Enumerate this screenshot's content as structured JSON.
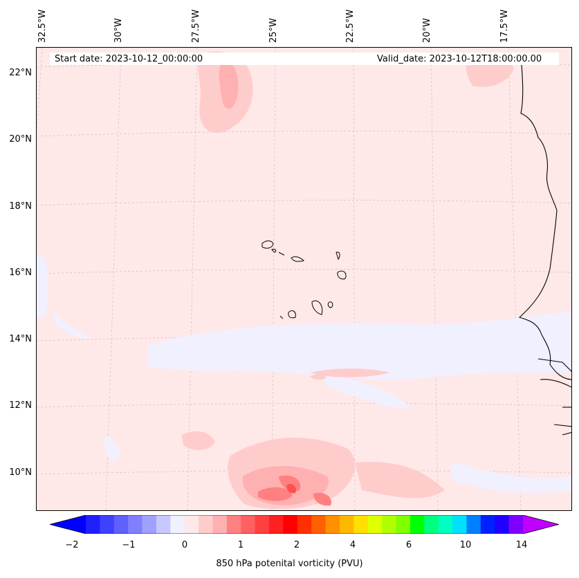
{
  "map": {
    "lon_labels": [
      "32.5°W",
      "30°W",
      "27.5°W",
      "25°W",
      "22.5°W",
      "20°W",
      "17.5°W"
    ],
    "lat_labels": [
      "22°N",
      "20°N",
      "18°N",
      "16°N",
      "14°N",
      "12°N",
      "10°N"
    ],
    "start_date": "Start date: 2023-10-12_00:00:00",
    "valid_date": "Valid_date: 2023-10-12T18:00:00.00",
    "background_color": "#ffe8e8",
    "negative_color": "#f0f0ff",
    "colors": {
      "light_pink": "#ffcccc",
      "pink": "#ffb0b0",
      "salmon": "#ff8080",
      "red": "#ff5050",
      "coastline": "#000000"
    }
  },
  "colorbar": {
    "label": "850 hPa potenital vorticity (PVU)",
    "tick_labels": [
      "−2",
      "−1",
      "0",
      "1",
      "2",
      "4",
      "6",
      "10",
      "14"
    ],
    "colors": [
      "#0000ff",
      "#2020ff",
      "#4040ff",
      "#6060ff",
      "#8080ff",
      "#a0a0ff",
      "#c8c8ff",
      "#f0f0ff",
      "#ffe8e8",
      "#ffcccc",
      "#ffb0b0",
      "#ff8080",
      "#ff6060",
      "#ff4040",
      "#ff2020",
      "#ff0000",
      "#ff3000",
      "#ff6000",
      "#ff9000",
      "#ffb800",
      "#ffe000",
      "#e0ff00",
      "#b0ff00",
      "#80ff00",
      "#00ff00",
      "#00ff80",
      "#00ffc0",
      "#00e0ff",
      "#0080ff",
      "#0020ff",
      "#2000ff",
      "#8000ff",
      "#c000ff"
    ]
  }
}
